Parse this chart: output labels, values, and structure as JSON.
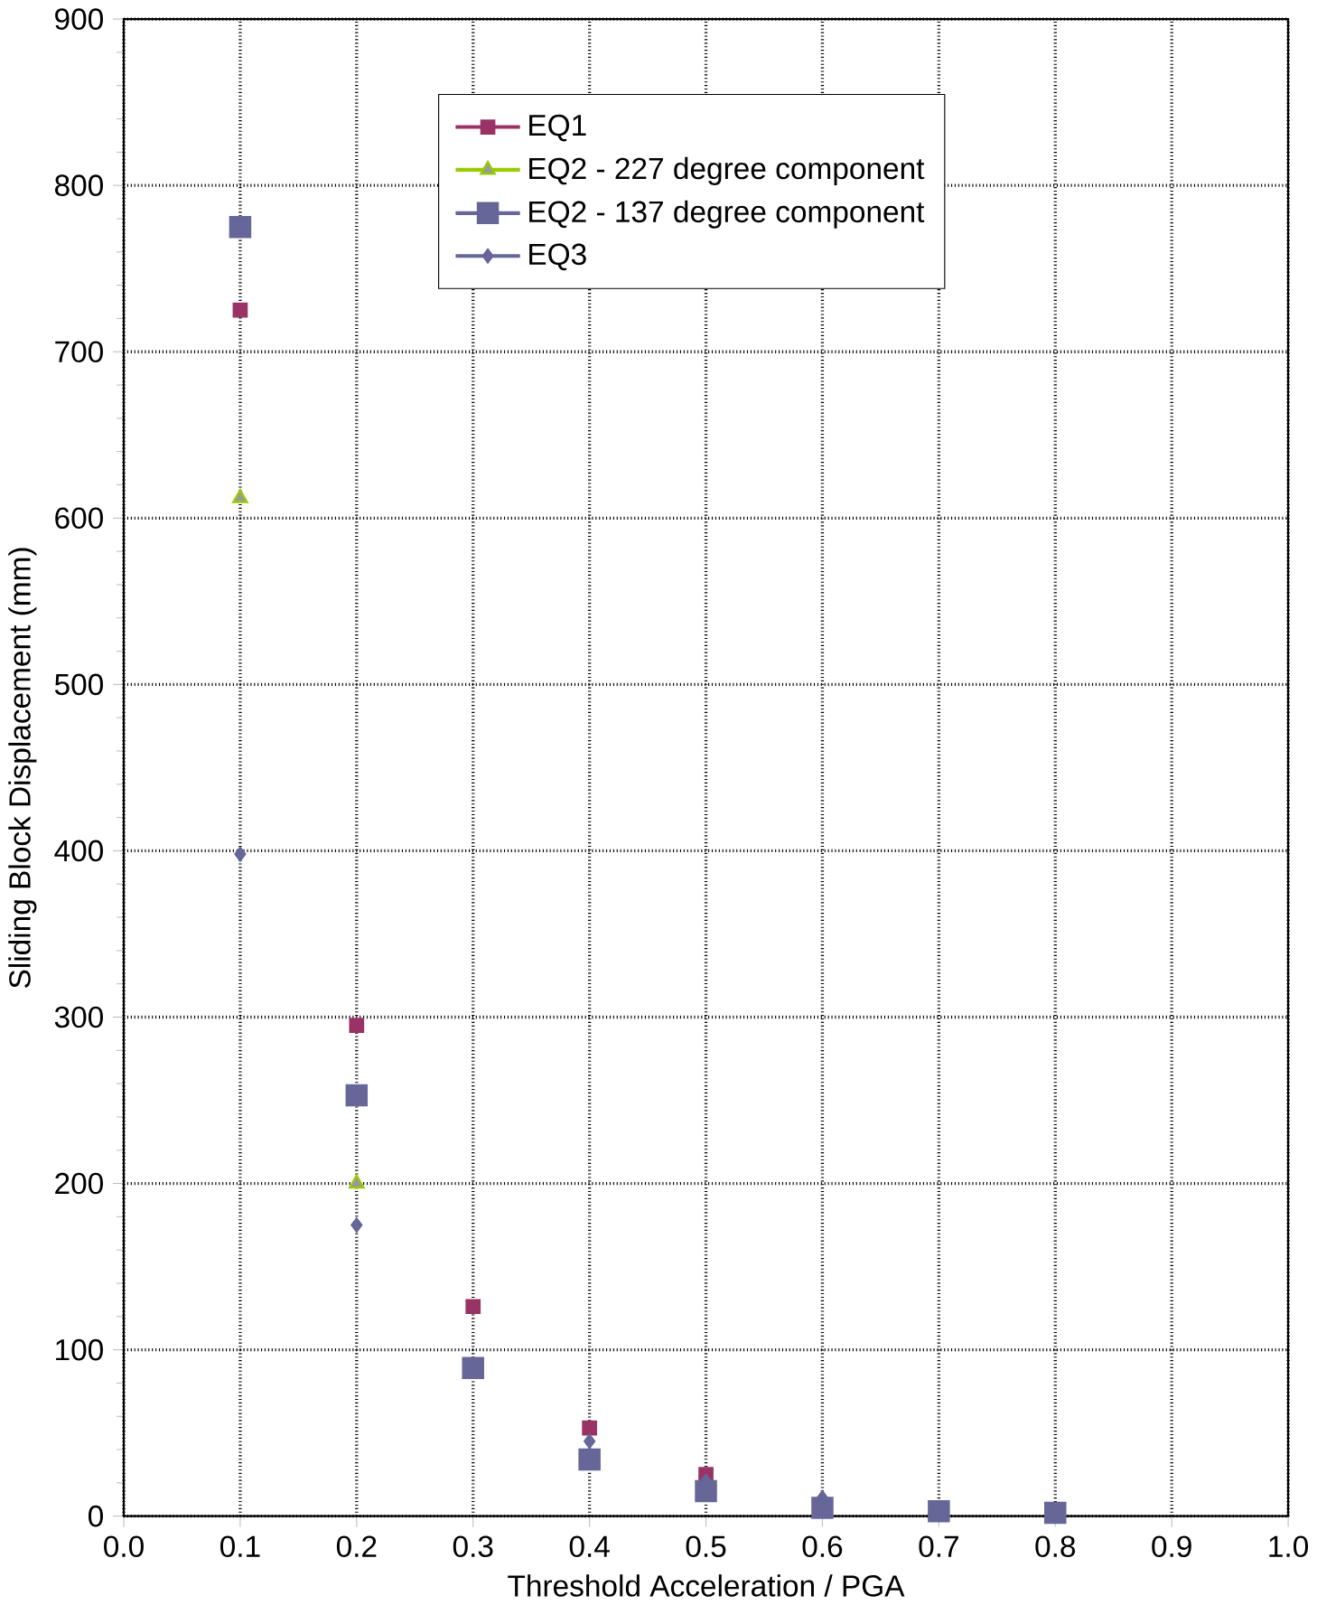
{
  "chart_data": {
    "type": "scatter",
    "xlabel": "Threshold Acceleration / PGA",
    "ylabel": "Sliding Block Displacement (mm)",
    "x": [
      0.1,
      0.2,
      0.3,
      0.4,
      0.5,
      0.6,
      0.7,
      0.8
    ],
    "series": [
      {
        "name": "EQ1",
        "color": "#993366",
        "marker": "square",
        "values": [
          725,
          295,
          126,
          53,
          25,
          null,
          null,
          null
        ]
      },
      {
        "name": "EQ2 - 227 degree component",
        "color": "#99cc00",
        "marker": "triangle",
        "values": [
          612,
          200,
          null,
          null,
          null,
          null,
          null,
          null
        ]
      },
      {
        "name": "EQ2 - 137 degree component",
        "color": "#666699",
        "marker": "square",
        "values": [
          775,
          253,
          89,
          34,
          15,
          5,
          3,
          2
        ]
      },
      {
        "name": "EQ3",
        "color": "#666699",
        "marker": "diamond",
        "values": [
          398,
          175,
          null,
          45,
          21,
          11,
          null,
          null
        ]
      }
    ],
    "xlim": [
      0,
      1
    ],
    "ylim": [
      0,
      900
    ],
    "xticks": [
      {
        "value": 0,
        "label": "0.0"
      },
      {
        "value": 0.1,
        "label": "0.1"
      },
      {
        "value": 0.2,
        "label": "0.2"
      },
      {
        "value": 0.3,
        "label": "0.3"
      },
      {
        "value": 0.4,
        "label": "0.4"
      },
      {
        "value": 0.5,
        "label": "0.5"
      },
      {
        "value": 0.6,
        "label": "0.6"
      },
      {
        "value": 0.7,
        "label": "0.7"
      },
      {
        "value": 0.8,
        "label": "0.8"
      },
      {
        "value": 0.9,
        "label": "0.9"
      },
      {
        "value": 1,
        "label": "1.0"
      }
    ],
    "yticks": [
      0,
      100,
      200,
      300,
      400,
      500,
      600,
      700,
      800,
      900
    ],
    "grid": true,
    "legend": "top right"
  }
}
